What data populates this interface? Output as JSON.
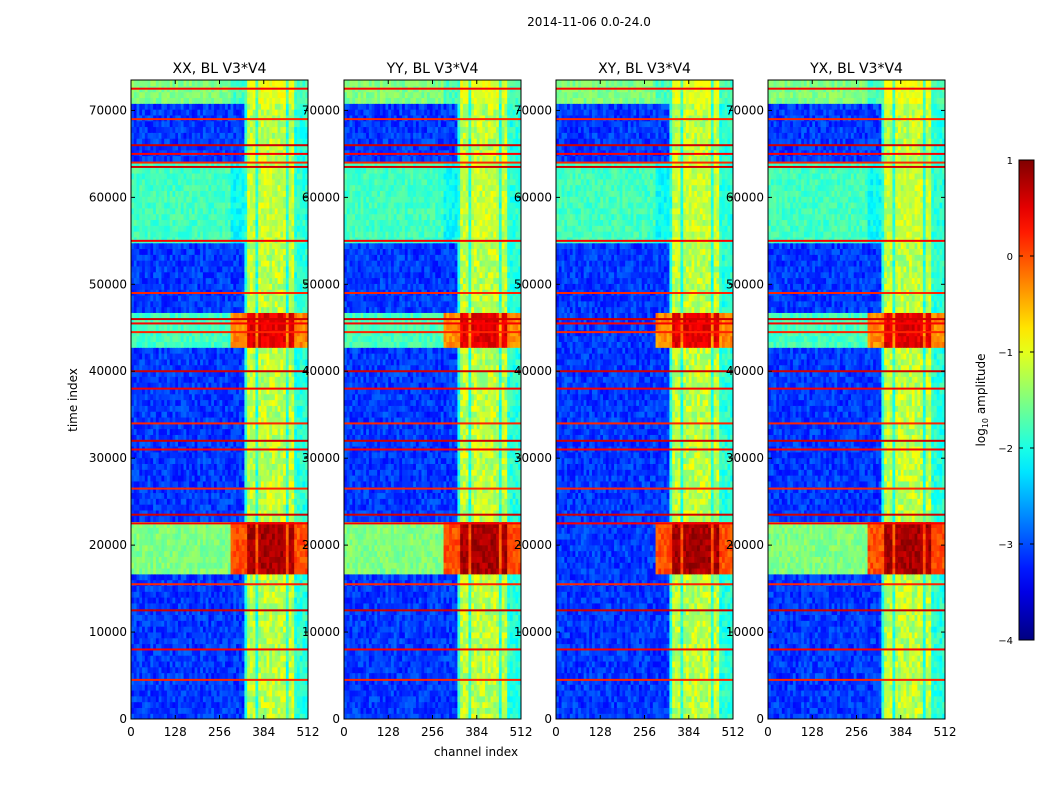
{
  "chart_data": {
    "type": "heatmap",
    "suptitle": "2014-11-06 0.0-24.0",
    "xlabel": "channel index",
    "ylabel": "time index",
    "xlim": [
      0,
      512
    ],
    "ylim": [
      0,
      73500
    ],
    "xticks": [
      0,
      128,
      256,
      384,
      512
    ],
    "yticks": [
      0,
      10000,
      20000,
      30000,
      40000,
      50000,
      60000,
      70000
    ],
    "colormap": "jet",
    "colorbar": {
      "label": "log10 amplitude",
      "label_main": "log",
      "label_sub": "10",
      "label_rest": " amplitude",
      "range": [
        -4,
        1
      ],
      "ticks": [
        1,
        0,
        -1,
        -2,
        -3,
        -4
      ],
      "tick_labels": [
        "1",
        "0",
        "−1",
        "−2",
        "−3",
        "−4"
      ]
    },
    "panels": [
      {
        "title": "XX, BL V3*V4",
        "pol": "XX"
      },
      {
        "title": "YY, BL V3*V4",
        "pol": "YY"
      },
      {
        "title": "XY, BL V3*V4",
        "pol": "XY"
      },
      {
        "title": "YX, BL V3*V4",
        "pol": "YX"
      }
    ],
    "features": {
      "band_channels": [
        [
          337,
          357
        ],
        [
          369,
          388
        ],
        [
          396,
          420
        ],
        [
          428,
          450
        ],
        [
          458,
          475
        ]
      ],
      "band_edge_x": {
        "XX": 327,
        "YY": 327,
        "XY": 327,
        "YX": 327
      },
      "background_log_amp": -3.1,
      "bright_time_ranges": [
        {
          "range": [
            17000,
            23000
          ],
          "log_amp": 0.8,
          "label": "strong RFI block"
        },
        {
          "range": [
            42500,
            46500
          ],
          "log_amp": 0.5,
          "label": "RFI block"
        },
        {
          "range": [
            55000,
            64000
          ],
          "log_amp": -1.3,
          "label": "elevated period"
        },
        {
          "range": [
            71000,
            73500
          ],
          "log_amp": -1.0,
          "label": "elevated period top"
        }
      ],
      "horizontal_flag_rows": [
        4500,
        8000,
        12500,
        15500,
        22500,
        23500,
        26500,
        31000,
        32000,
        34000,
        38000,
        40000,
        44500,
        45500,
        46000,
        49000,
        55000,
        63500,
        64000,
        65000,
        66000,
        69000,
        72500
      ]
    }
  }
}
